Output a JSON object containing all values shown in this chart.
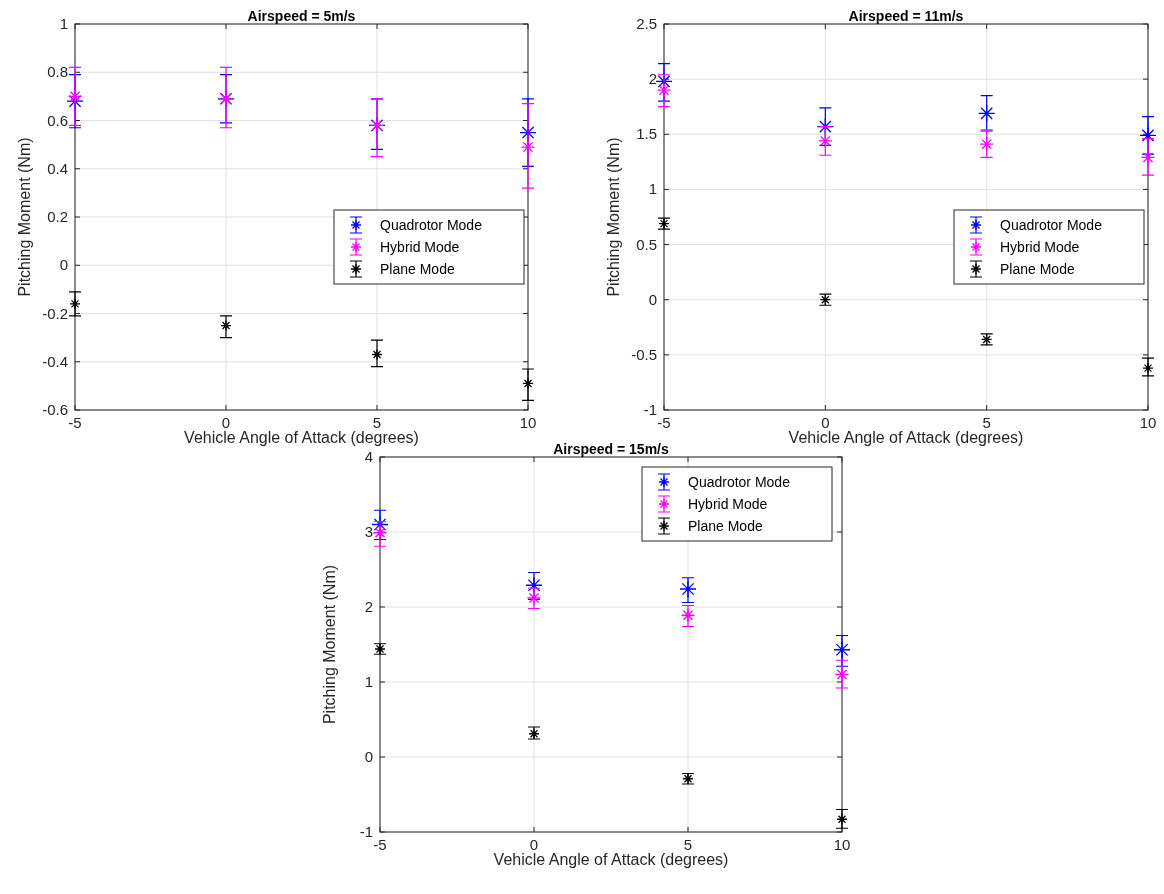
{
  "chart_data": [
    {
      "type": "scatter",
      "title": "Airspeed = 5m/s",
      "xlabel": "Vehicle Angle of Attack (degrees)",
      "ylabel": "Pitching Moment (Nm)",
      "x": [
        -5,
        0,
        5,
        10
      ],
      "xlim": [
        -5,
        10
      ],
      "xticks": [
        -5,
        0,
        5,
        10
      ],
      "ylim": [
        -0.6,
        1
      ],
      "yticks": [
        -0.6,
        -0.4,
        -0.2,
        0,
        0.2,
        0.4,
        0.6,
        0.8,
        1
      ],
      "grid": true,
      "legend": "right",
      "marker": "cross",
      "series": [
        {
          "name": "Quadrotor Mode",
          "color": "#0000ff",
          "values": [
            0.68,
            0.69,
            0.58,
            0.55
          ],
          "errors": [
            [
              0.57,
              0.79
            ],
            [
              0.59,
              0.79
            ],
            [
              0.48,
              0.69
            ],
            [
              0.41,
              0.69
            ]
          ]
        },
        {
          "name": "Hybrid Mode",
          "color": "#ff00ff",
          "values": [
            0.7,
            0.69,
            0.58,
            0.49
          ],
          "errors": [
            [
              0.58,
              0.82
            ],
            [
              0.57,
              0.82
            ],
            [
              0.45,
              0.69
            ],
            [
              0.32,
              0.67
            ]
          ]
        },
        {
          "name": "Plane Mode",
          "color": "#000000",
          "values": [
            -0.16,
            -0.25,
            -0.37,
            -0.49
          ],
          "errors": [
            [
              -0.21,
              -0.11
            ],
            [
              -0.3,
              -0.21
            ],
            [
              -0.42,
              -0.31
            ],
            [
              -0.56,
              -0.43
            ]
          ]
        }
      ]
    },
    {
      "type": "scatter",
      "title": "Airspeed = 11m/s",
      "xlabel": "Vehicle Angle of Attack (degrees)",
      "ylabel": "Pitching Moment (Nm)",
      "x": [
        -5,
        0,
        5,
        10
      ],
      "xlim": [
        -5,
        10
      ],
      "xticks": [
        -5,
        0,
        5,
        10
      ],
      "ylim": [
        -1,
        2.5
      ],
      "yticks": [
        -1,
        -0.5,
        0,
        0.5,
        1,
        1.5,
        2,
        2.5
      ],
      "grid": true,
      "legend": "right",
      "marker": "cross",
      "series": [
        {
          "name": "Quadrotor Mode",
          "color": "#0000ff",
          "values": [
            1.98,
            1.57,
            1.69,
            1.49
          ],
          "errors": [
            [
              1.8,
              2.14
            ],
            [
              1.4,
              1.74
            ],
            [
              1.53,
              1.85
            ],
            [
              1.32,
              1.66
            ]
          ]
        },
        {
          "name": "Hybrid Mode",
          "color": "#ff00ff",
          "values": [
            1.9,
            1.44,
            1.41,
            1.29
          ],
          "errors": [
            [
              1.75,
              2.04
            ],
            [
              1.31,
              1.57
            ],
            [
              1.29,
              1.54
            ],
            [
              1.13,
              1.46
            ]
          ]
        },
        {
          "name": "Plane Mode",
          "color": "#000000",
          "values": [
            0.69,
            0,
            -0.36,
            -0.62
          ],
          "errors": [
            [
              0.64,
              0.74
            ],
            [
              -0.05,
              0.05
            ],
            [
              -0.41,
              -0.31
            ],
            [
              -0.69,
              -0.53
            ]
          ]
        }
      ]
    },
    {
      "type": "scatter",
      "title": "Airspeed = 15m/s",
      "xlabel": "Vehicle Angle of Attack (degrees)",
      "ylabel": "Pitching Moment (Nm)",
      "x": [
        -5,
        0,
        5,
        10
      ],
      "xlim": [
        -5,
        10
      ],
      "xticks": [
        -5,
        0,
        5,
        10
      ],
      "ylim": [
        -1,
        4
      ],
      "yticks": [
        -1,
        0,
        1,
        2,
        3,
        4
      ],
      "grid": true,
      "legend": "top right",
      "marker": "cross",
      "series": [
        {
          "name": "Quadrotor Mode",
          "color": "#0000ff",
          "values": [
            3.1,
            2.29,
            2.24,
            1.43
          ],
          "errors": [
            [
              2.9,
              3.29
            ],
            [
              2.1,
              2.46
            ],
            [
              2.06,
              2.39
            ],
            [
              1.21,
              1.62
            ]
          ]
        },
        {
          "name": "Hybrid Mode",
          "color": "#ff00ff",
          "values": [
            2.99,
            2.12,
            1.89,
            1.1
          ],
          "errors": [
            [
              2.81,
              3.14
            ],
            [
              1.98,
              2.25
            ],
            [
              1.74,
              2.02
            ],
            [
              0.92,
              1.29
            ]
          ]
        },
        {
          "name": "Plane Mode",
          "color": "#000000",
          "values": [
            1.44,
            0.31,
            -0.29,
            -0.83
          ],
          "errors": [
            [
              1.37,
              1.51
            ],
            [
              0.24,
              0.4
            ],
            [
              -0.36,
              -0.22
            ],
            [
              -0.95,
              -0.7
            ]
          ]
        }
      ]
    }
  ]
}
